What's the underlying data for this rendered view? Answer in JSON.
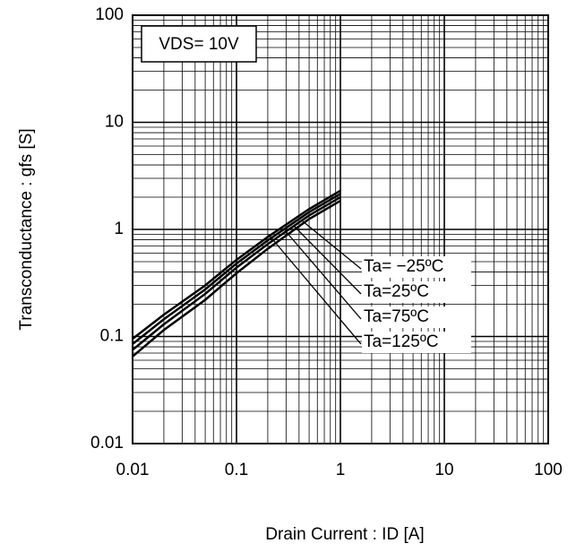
{
  "chart_data": {
    "type": "line",
    "x_label": "Drain Current : ID [A]",
    "y_label": "Transconductance : gfs [S]",
    "annotation": "VDS= 10V",
    "x": [
      0.01,
      0.02,
      0.05,
      0.1,
      0.2,
      0.5,
      1
    ],
    "series": [
      {
        "name": "Ta= −25ºC",
        "color": "#000000",
        "values": [
          0.095,
          0.16,
          0.3,
          0.52,
          0.85,
          1.55,
          2.3
        ]
      },
      {
        "name": "Ta=25ºC",
        "color": "#000000",
        "values": [
          0.085,
          0.145,
          0.275,
          0.48,
          0.79,
          1.45,
          2.15
        ]
      },
      {
        "name": "Ta=75ºC",
        "color": "#000000",
        "values": [
          0.075,
          0.13,
          0.25,
          0.44,
          0.73,
          1.35,
          2.0
        ]
      },
      {
        "name": "Ta=125ºC",
        "color": "#000000",
        "values": [
          0.065,
          0.115,
          0.22,
          0.39,
          0.66,
          1.25,
          1.85
        ]
      }
    ],
    "xlim": [
      0.01,
      100
    ],
    "xticks": [
      0.01,
      0.1,
      1,
      10,
      100
    ],
    "ylim": [
      0.01,
      100
    ],
    "yticks": [
      0.01,
      0.1,
      1,
      10,
      100
    ],
    "log_x": true,
    "log_y": true,
    "grid": true
  }
}
